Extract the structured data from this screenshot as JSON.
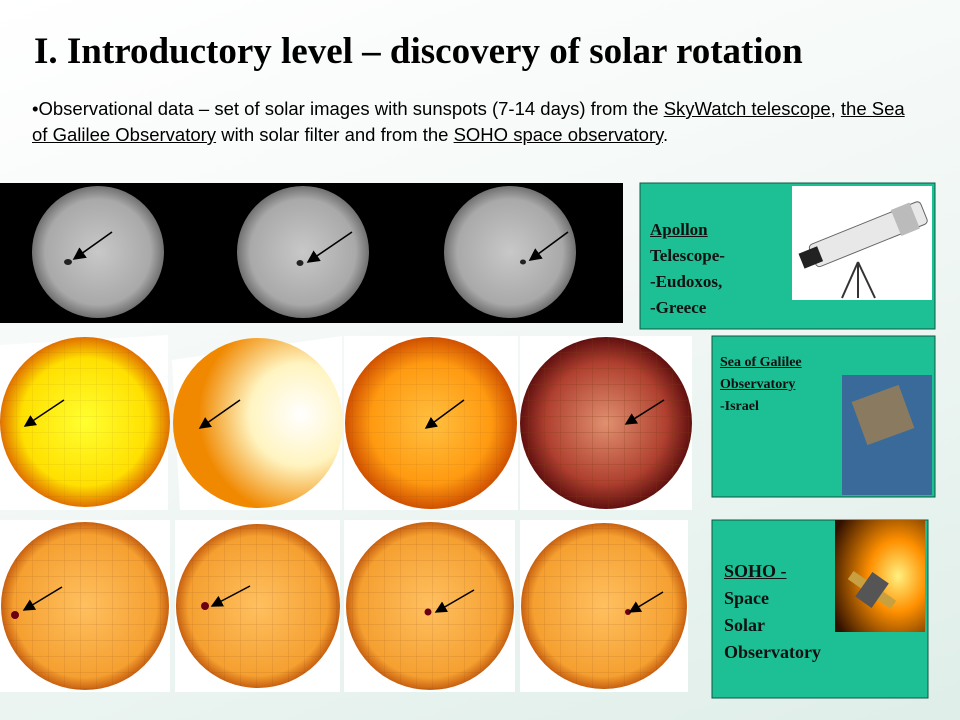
{
  "title": "I. Introductory level – discovery of solar rotation",
  "bullet": {
    "parts": [
      {
        "text": "Observational data – set of solar images with sunspots (7-14 days) from the "
      },
      {
        "text": "SkyWatch telescope",
        "link": true
      },
      {
        "text": ", "
      },
      {
        "text": "the Sea of Galilee Observatory",
        "link": true
      },
      {
        "text": " with solar filter and from the "
      },
      {
        "text": "SOHO space observatory",
        "link": true
      },
      {
        "text": "."
      }
    ]
  },
  "panels": [
    {
      "lines": [
        "Apollon",
        "Telescope-",
        "-Eudoxos,",
        "-Greece"
      ]
    },
    {
      "lines": [
        "Sea of Galilee",
        "Observatory",
        "-Israel"
      ]
    },
    {
      "lines": [
        "SOHO -",
        "Space",
        "Solar",
        "Observatory"
      ]
    }
  ]
}
